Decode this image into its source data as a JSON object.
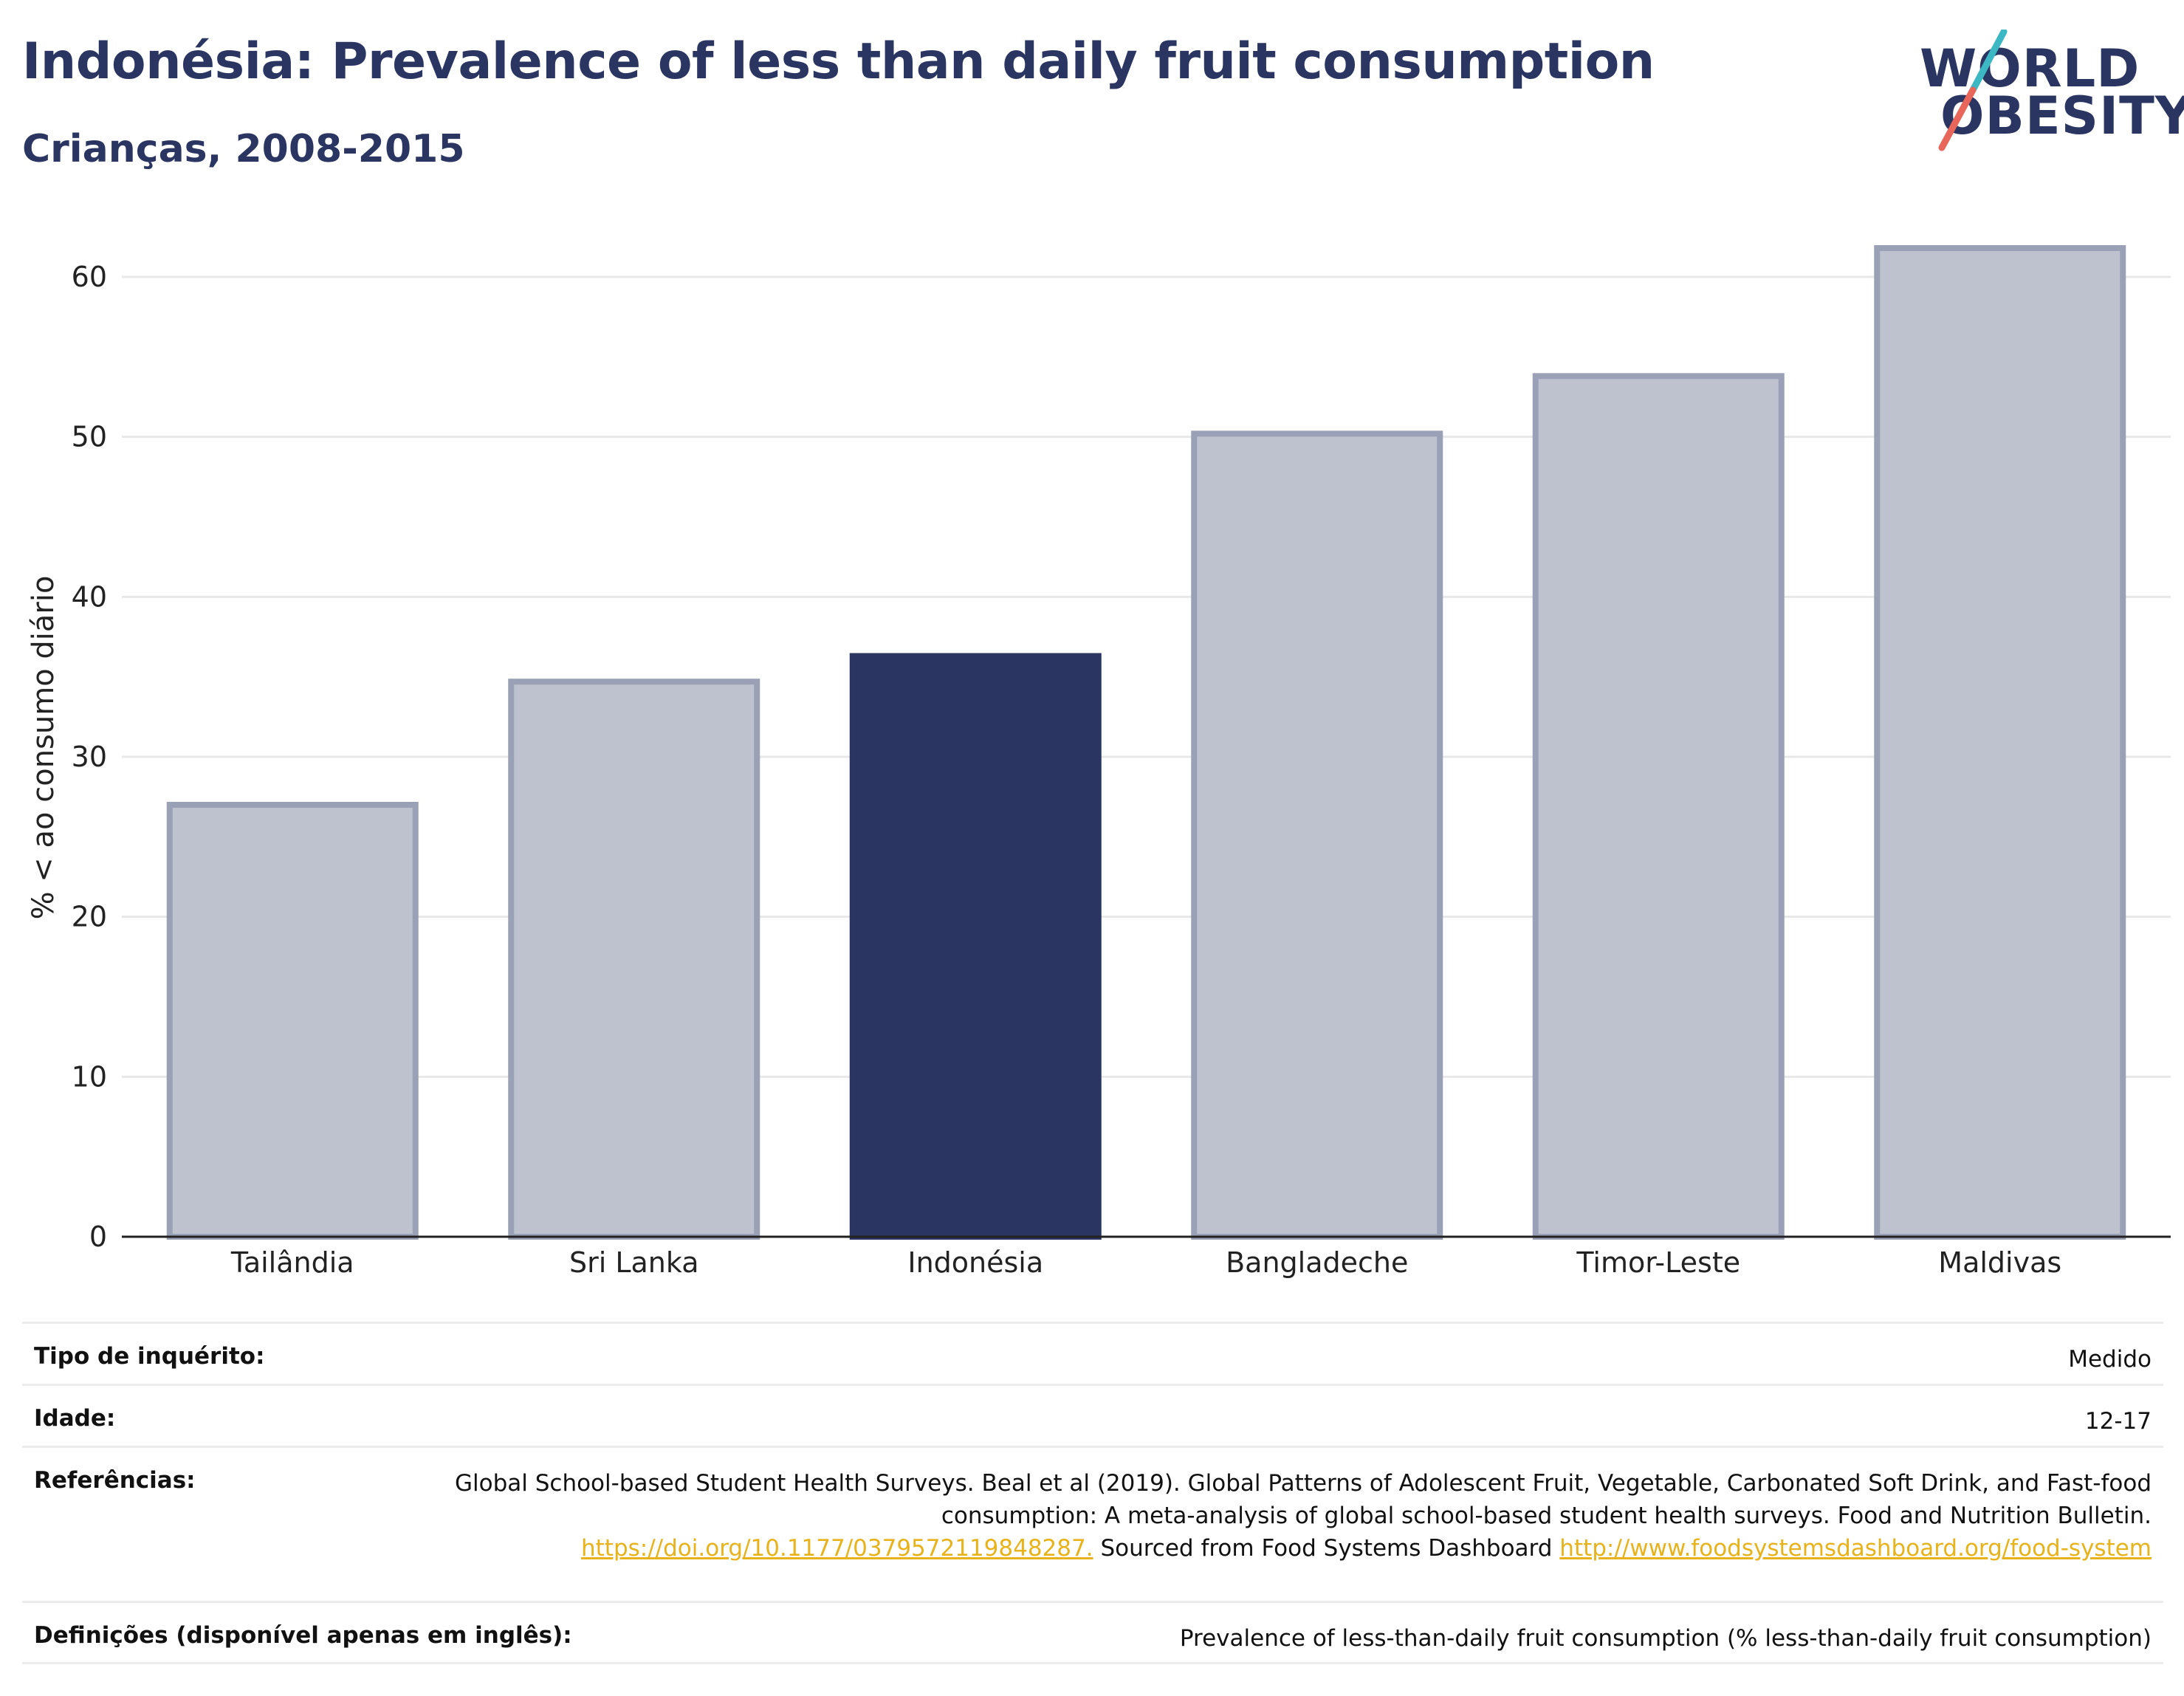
{
  "header": {
    "title": "Indonésia: Prevalence of less than daily fruit consumption",
    "subtitle": "Crianças, 2008-2015"
  },
  "logo": {
    "line1": "WORLD",
    "line2": "OBESITY",
    "colors": {
      "text": "#2a3561",
      "slash_top": "#3bb8c3",
      "slash_bottom": "#e8665a"
    }
  },
  "colors": {
    "highlight": "#2a3561",
    "bar_fill": "#bec2cf",
    "bar_stroke": "#9aa0b5",
    "grid": "#e8e8e8",
    "axis": "#222222",
    "link": "#e8b21a"
  },
  "chart_data": {
    "type": "bar",
    "categories": [
      "Tailândia",
      "Sri Lanka",
      "Indonésia",
      "Bangladeche",
      "Timor-Leste",
      "Maldivas"
    ],
    "values": [
      27.0,
      34.7,
      36.3,
      50.2,
      53.8,
      61.8
    ],
    "highlight": "Indonésia",
    "ylabel": "% < ao consumo diário",
    "ylim": [
      0,
      63
    ],
    "yticks": [
      0,
      10,
      20,
      30,
      40,
      50,
      60
    ],
    "grid": true
  },
  "details": {
    "survey_type": {
      "label": "Tipo de inquérito:",
      "value": "Medido"
    },
    "age": {
      "label": "Idade:",
      "value": "12-17"
    },
    "references": {
      "label": "Referências:",
      "text1": "Global School-based Student Health Surveys. Beal et al (2019). Global Patterns of Adolescent Fruit, Vegetable, Carbonated Soft Drink, and Fast-food consumption: A meta-analysis of global school-based student health surveys. Food and Nutrition Bulletin.",
      "link1": "https://doi.org/10.1177/0379572119848287.",
      "text2": "Sourced from Food Systems Dashboard",
      "link2": "http://www.foodsystemsdashboard.org/food-system"
    },
    "definitions": {
      "label": "Definições (disponível apenas em inglês):",
      "value": "Prevalence of less-than-daily fruit consumption (% less-than-daily fruit consumption)"
    }
  }
}
